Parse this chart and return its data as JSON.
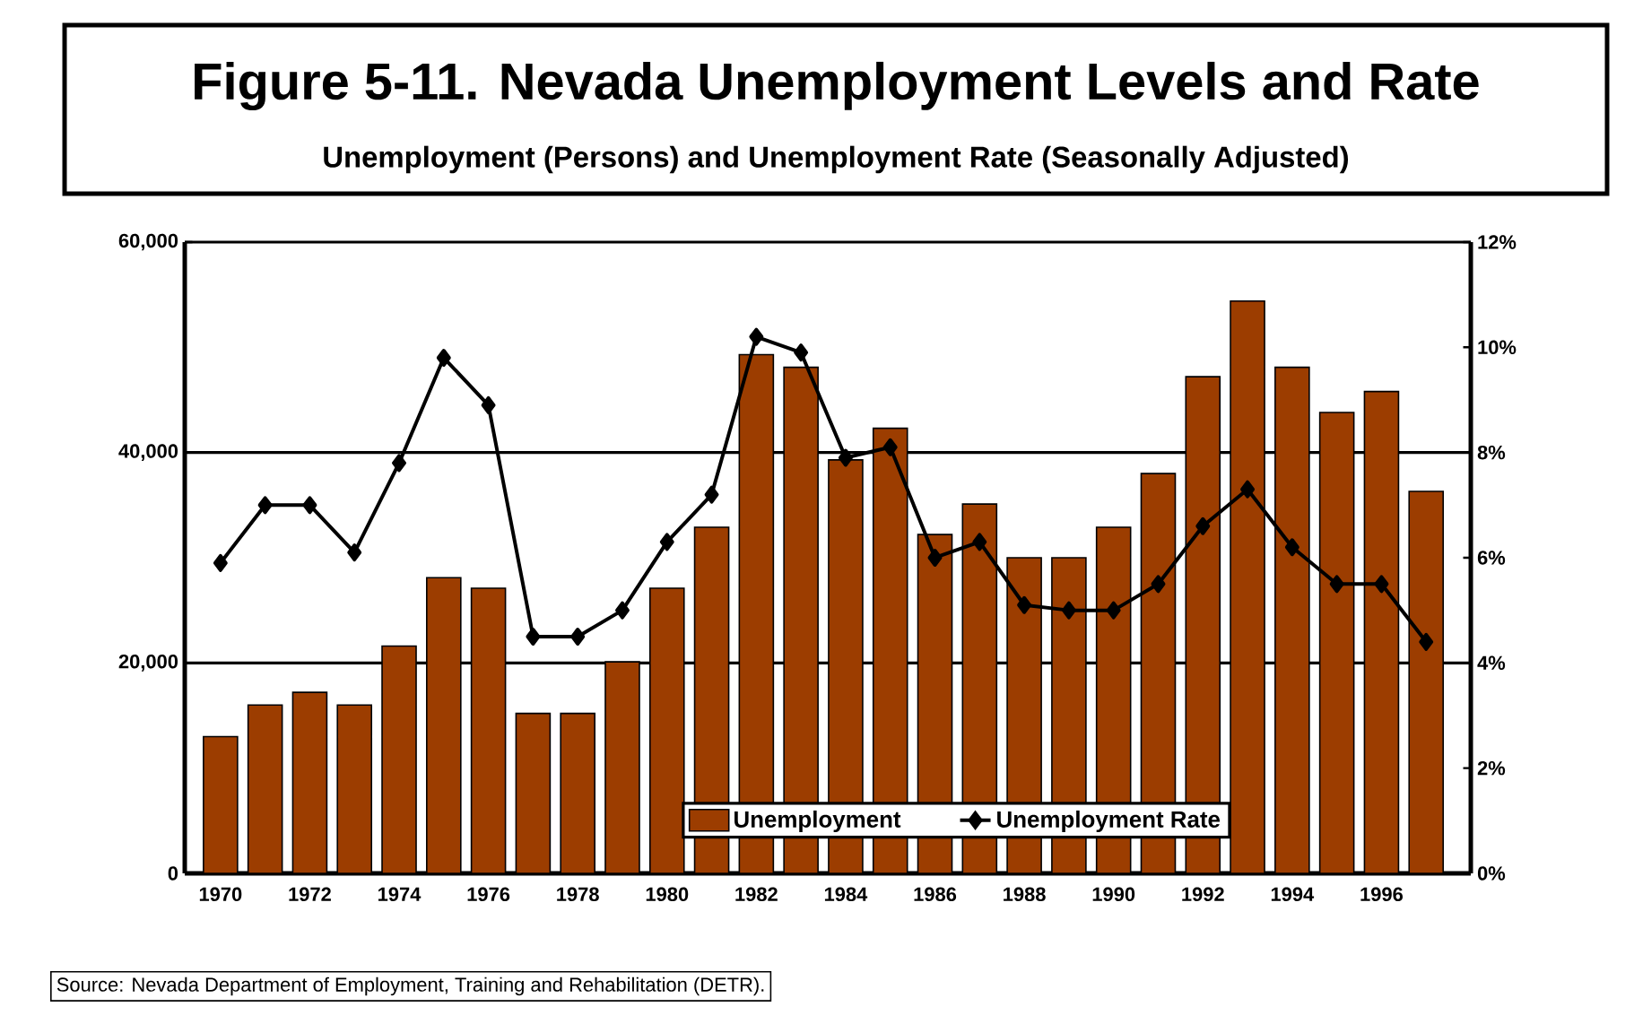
{
  "chart_data": {
    "type": "bar",
    "title": "Figure 5-11. Nevada Unemployment Levels and Rate",
    "subtitle": "Unemployment (Persons) and Unemployment Rate (Seasonally Adjusted)",
    "categories": [
      "1970",
      null,
      "1972",
      null,
      "1974",
      null,
      "1976",
      null,
      "1978",
      null,
      "1980",
      null,
      "1982",
      null,
      "1984",
      null,
      "1986",
      null,
      "1988",
      null,
      "1990",
      null,
      "1992",
      null,
      "1994",
      null,
      "1996",
      null
    ],
    "series": [
      {
        "name": "Unemployment",
        "color": "#9c3d00",
        "values": [
          13000,
          16000,
          17200,
          16000,
          21600,
          28100,
          27100,
          15200,
          15200,
          20100,
          27100,
          32900,
          49300,
          48100,
          39300,
          42300,
          32200,
          35100,
          30000,
          30000,
          32900,
          38000,
          47200,
          54400,
          48100,
          43800,
          45800,
          36300
        ]
      },
      {
        "name": "Unemployment Rate",
        "type": "line",
        "axis": "y2",
        "color": "#000000",
        "values": [
          5.9,
          7.0,
          7.0,
          6.1,
          7.8,
          9.8,
          8.9,
          4.5,
          4.5,
          5.0,
          6.3,
          7.2,
          10.2,
          9.9,
          7.9,
          8.1,
          6.0,
          6.3,
          5.1,
          5.0,
          5.0,
          5.5,
          6.6,
          7.3,
          6.2,
          5.5,
          5.5,
          4.4
        ]
      }
    ],
    "ylim": [
      0,
      60000
    ],
    "yticks": [
      {
        "value": 0,
        "label": "0"
      },
      {
        "value": 20000,
        "label": "20,000"
      },
      {
        "value": 40000,
        "label": "40,000"
      },
      {
        "value": 60000,
        "label": "60,000"
      }
    ],
    "y2lim": [
      0,
      12
    ],
    "y2ticks": [
      {
        "value": 0,
        "label": "0%"
      },
      {
        "value": 2,
        "label": "2%"
      },
      {
        "value": 4,
        "label": "4%"
      },
      {
        "value": 6,
        "label": "6%"
      },
      {
        "value": 8,
        "label": "8%"
      },
      {
        "value": 10,
        "label": "10%"
      },
      {
        "value": 12,
        "label": "12%"
      }
    ],
    "grid": "y",
    "legend": "bottom",
    "marker": "diamond",
    "annotations": [
      "Source:  Nevada Department of Employment, Training and Rehabilitation (DETR)."
    ]
  }
}
